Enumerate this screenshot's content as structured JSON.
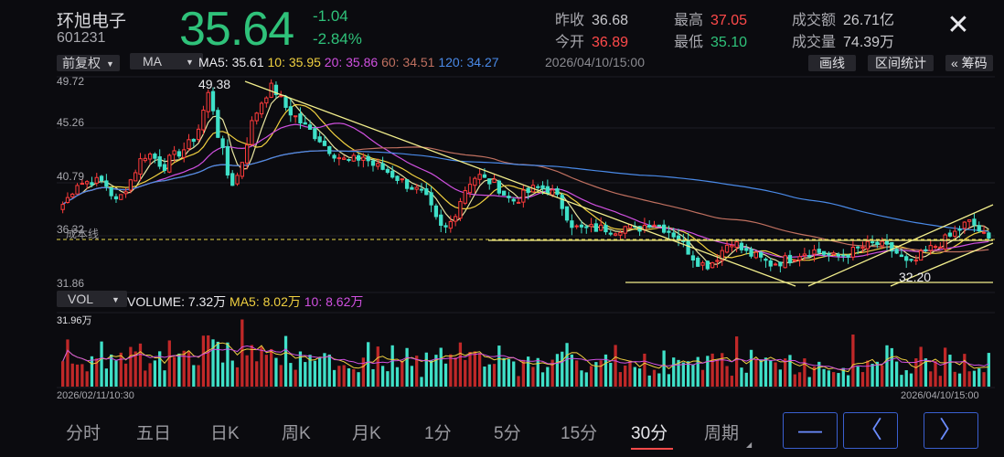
{
  "header": {
    "name": "环旭电子",
    "code": "601231",
    "price": "35.64",
    "change": "-1.04",
    "change_pct": "-2.84%",
    "prev_close_label": "昨收",
    "prev_close": "36.68",
    "open_label": "今开",
    "open": "36.89",
    "high_label": "最高",
    "high": "37.05",
    "low_label": "最低",
    "low": "35.10",
    "amount_label": "成交额",
    "amount": "26.71亿",
    "volume_label": "成交量",
    "volume": "74.39万",
    "close_icon": "close-icon"
  },
  "toolbar": {
    "adjust": "前复权",
    "indicator": "MA",
    "ma5": "MA5: 35.61",
    "ma10": "10: 35.95",
    "ma20": "20: 35.86",
    "ma60": "60: 34.51",
    "ma120": "120: 34.27",
    "datetime": "2026/04/10/15:00",
    "draw": "画线",
    "range_stats": "区间统计",
    "chips": "« 筹码",
    "colors": {
      "ma5": "#e8e4a0",
      "ma10": "#f0d040",
      "ma20": "#d050e0",
      "ma60": "#c07060",
      "ma120": "#4a8ae8"
    }
  },
  "main_axis": {
    "ticks": [
      "49.72",
      "45.26",
      "40.79",
      "36.32",
      "31.86"
    ],
    "cost_line_label": "成本线",
    "high_label": "49.38",
    "low_label": "32.20"
  },
  "vol_toolbar": {
    "indicator": "VOL",
    "volume": "VOLUME: 7.32万",
    "ma5": "MA5: 8.02万",
    "ma10": "10: 8.62万",
    "max_tick": "31.96万"
  },
  "x_axis": {
    "start": "2026/02/11/10:30",
    "end": "2026/04/10/15:00"
  },
  "periods": [
    "分时",
    "五日",
    "日K",
    "周K",
    "月K",
    "1分",
    "5分",
    "15分",
    "30分",
    "周期"
  ],
  "active_period": "30分",
  "nav": {
    "minus": "—",
    "prev": "〈",
    "next": "〉"
  },
  "chart_data": {
    "type": "candlestick",
    "y_range": [
      31.86,
      49.72
    ],
    "volume_range": [
      0,
      31.96
    ],
    "volume_unit": "万",
    "x_range": [
      "2026/02/11/10:30",
      "2026/04/10/15:00"
    ],
    "series": [
      {
        "name": "MA5",
        "value": 35.61
      },
      {
        "name": "10",
        "value": 35.95
      },
      {
        "name": "20",
        "value": 35.86
      },
      {
        "name": "60",
        "value": 34.51
      },
      {
        "name": "120",
        "value": 34.27
      }
    ],
    "close_path": [
      38.8,
      39.4,
      40.2,
      40.9,
      40.6,
      41.0,
      40.8,
      40.9,
      40.6,
      39.8,
      39.0,
      39.6,
      40.5,
      41.2,
      42.3,
      43.1,
      43.3,
      43.0,
      42.5,
      42.2,
      42.8,
      43.2,
      43.5,
      43.8,
      44.4,
      45.0,
      46.5,
      48.8,
      47.5,
      45.0,
      43.2,
      41.0,
      40.6,
      41.8,
      43.5,
      45.6,
      46.8,
      47.8,
      48.6,
      49.2,
      48.7,
      47.9,
      47.2,
      46.8,
      46.3,
      45.8,
      45.4,
      45.0,
      44.6,
      44.0,
      43.6,
      43.2,
      42.9,
      42.6,
      42.7,
      42.8,
      43.1,
      42.7,
      42.3,
      42.1,
      41.9,
      41.6,
      41.3,
      41.0,
      40.6,
      40.4,
      40.1,
      39.8,
      39.2,
      38.2,
      37.1,
      36.5,
      36.8,
      37.7,
      38.9,
      40.0,
      40.8,
      41.2,
      41.3,
      40.9,
      40.8,
      40.5,
      40.0,
      39.4,
      39.1,
      39.3,
      39.6,
      39.9,
      40.2,
      40.3,
      40.2,
      40.0,
      39.6,
      38.9,
      38.0,
      37.1,
      36.7,
      36.6,
      36.6,
      36.7,
      36.6,
      36.7,
      36.6,
      36.5,
      36.7,
      36.8,
      36.7,
      36.5,
      36.8,
      37.0,
      37.3,
      37.0,
      36.8,
      36.5,
      36.2,
      35.8,
      35.2,
      34.6,
      34.0,
      33.6,
      33.4,
      33.5,
      34.0,
      34.6,
      35.2,
      35.6,
      35.2,
      34.7,
      34.4,
      34.3,
      34.0,
      33.8,
      33.5,
      33.6,
      33.7,
      33.9,
      34.0,
      34.3,
      34.5,
      34.6,
      34.7,
      34.6,
      34.5,
      34.3,
      34.1,
      34.2,
      34.3,
      34.5,
      34.7,
      34.9,
      35.1,
      35.2,
      35.3,
      35.1,
      34.9,
      34.7,
      34.4,
      33.8,
      33.4,
      33.6,
      34.1,
      34.5,
      34.8,
      35.1,
      35.4,
      35.7,
      36.0,
      36.4,
      36.8,
      37.2,
      37.1,
      36.6,
      36.0,
      35.6
    ],
    "annotations": [
      {
        "label": "49.38",
        "value": 49.38,
        "kind": "high"
      },
      {
        "label": "32.20",
        "value": 32.2,
        "kind": "low"
      },
      {
        "label": "成本线",
        "value": 36.32,
        "kind": "cost-line"
      }
    ]
  }
}
